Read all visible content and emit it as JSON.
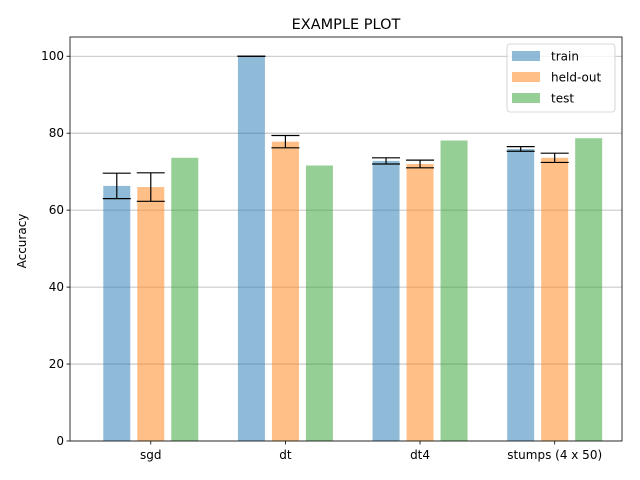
{
  "chart_data": {
    "type": "bar",
    "title": "EXAMPLE PLOT",
    "xlabel": "",
    "ylabel": "Accuracy",
    "categories": [
      "sgd",
      "dt",
      "dt4",
      "stumps (4 x 50)"
    ],
    "ylim": [
      0,
      105
    ],
    "yticks": [
      0,
      20,
      40,
      60,
      80,
      100
    ],
    "grid": "y",
    "legend_position": "top-right",
    "series": [
      {
        "name": "train",
        "color": "#1f77b4",
        "values": [
          66.3,
          100.0,
          72.8,
          75.9
        ],
        "errors": [
          3.3,
          0.0,
          0.8,
          0.6
        ]
      },
      {
        "name": "held-out",
        "color": "#ff7f0e",
        "values": [
          66.0,
          77.8,
          72.0,
          73.6
        ],
        "errors": [
          3.7,
          1.6,
          1.0,
          1.2
        ]
      },
      {
        "name": "test",
        "color": "#2ca02c",
        "values": [
          73.6,
          71.6,
          78.1,
          78.7
        ],
        "errors": null
      }
    ]
  }
}
